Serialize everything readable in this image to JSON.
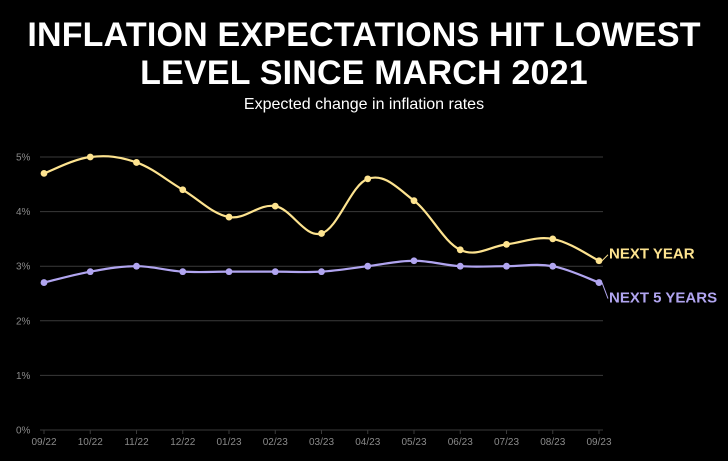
{
  "title": "INFLATION EXPECTATIONS HIT LOWEST LEVEL SINCE MARCH 2021",
  "subtitle": "Expected change in inflation rates",
  "colors": {
    "background": "#000000",
    "next_year": "#fde38f",
    "next_5_years": "#b1a5f0",
    "grid": "#3a3a3a",
    "tick_text": "#8a8a8a"
  },
  "chart_data": {
    "type": "line",
    "x": [
      "09/22",
      "10/22",
      "11/22",
      "12/22",
      "01/23",
      "02/23",
      "03/23",
      "04/23",
      "05/23",
      "06/23",
      "07/23",
      "08/23",
      "09/23"
    ],
    "ylim": [
      0,
      5
    ],
    "yticks": [
      "0%",
      "1%",
      "2%",
      "3%",
      "4%",
      "5%"
    ],
    "grid": true,
    "series": [
      {
        "name": "NEXT YEAR",
        "values": [
          4.7,
          5.0,
          4.9,
          4.4,
          3.9,
          4.1,
          3.6,
          4.6,
          4.2,
          3.3,
          3.4,
          3.5,
          3.1
        ]
      },
      {
        "name": "NEXT 5 YEARS",
        "values": [
          2.7,
          2.9,
          3.0,
          2.9,
          2.9,
          2.9,
          2.9,
          3.0,
          3.1,
          3.0,
          3.0,
          3.0,
          2.7
        ]
      }
    ]
  }
}
